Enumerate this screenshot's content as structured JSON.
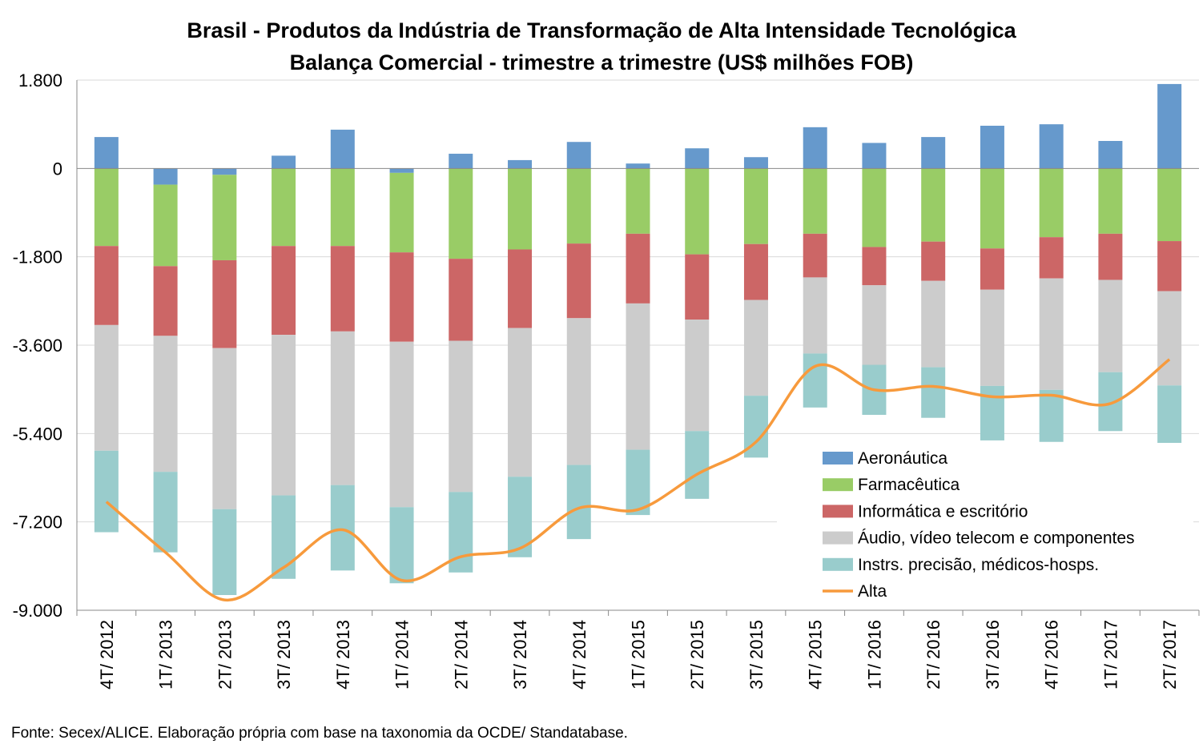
{
  "chart_data": {
    "type": "bar",
    "stacked": true,
    "title": "Brasil - Produtos da Indústria de Transformação de Alta Intensidade Tecnológica",
    "subtitle": "Balança Comercial - trimestre a trimestre (US$ milhões FOB)",
    "source": "Fonte: Secex/ALICE. Elaboração própria com base na taxonomia da OCDE/ Standatabase.",
    "categories": [
      "4T/ 2012",
      "1T/ 2013",
      "2T/ 2013",
      "3T/ 2013",
      "4T/ 2013",
      "1T/ 2014",
      "2T/ 2014",
      "3T/ 2014",
      "4T/ 2014",
      "1T/ 2015",
      "2T/ 2015",
      "3T/ 2015",
      "4T/ 2015",
      "1T/ 2016",
      "2T/ 2016",
      "3T/ 2016",
      "4T/ 2016",
      "1T/ 2017",
      "2T/ 2017"
    ],
    "ylim": [
      -9000,
      1800
    ],
    "yticks": [
      1800,
      0,
      -1800,
      -3600,
      -5400,
      -7200,
      -9000
    ],
    "ytick_labels": [
      "1.800",
      "0",
      "-1.800",
      "-3.600",
      "-5.400",
      "-7.200",
      "-9.000"
    ],
    "grid": true,
    "legend_position": "lower-right inside plot",
    "series": [
      {
        "name": "Aeronáutica",
        "type": "bar",
        "color": "#6699cc",
        "values": [
          640,
          -330,
          -130,
          260,
          790,
          -90,
          300,
          170,
          540,
          100,
          410,
          230,
          840,
          520,
          640,
          870,
          900,
          560,
          1720
        ]
      },
      {
        "name": "Farmacêutica",
        "type": "bar",
        "color": "#99cc66",
        "values": [
          -1580,
          -1660,
          -1740,
          -1580,
          -1580,
          -1620,
          -1840,
          -1650,
          -1530,
          -1330,
          -1750,
          -1540,
          -1330,
          -1600,
          -1490,
          -1630,
          -1400,
          -1330,
          -1480
        ]
      },
      {
        "name": "Informática e escritório",
        "type": "bar",
        "color": "#cc6666",
        "values": [
          -1610,
          -1420,
          -1790,
          -1810,
          -1740,
          -1820,
          -1670,
          -1600,
          -1520,
          -1420,
          -1330,
          -1140,
          -890,
          -780,
          -800,
          -840,
          -840,
          -940,
          -1020
        ]
      },
      {
        "name": "Áudio, vídeo telecom e componentes",
        "type": "bar",
        "color": "#cccccc",
        "values": [
          -2560,
          -2770,
          -3280,
          -3270,
          -3130,
          -3370,
          -3080,
          -3030,
          -2990,
          -2980,
          -2270,
          -1950,
          -1550,
          -1620,
          -1760,
          -1960,
          -2270,
          -1880,
          -1920
        ]
      },
      {
        "name": "Instrs. precisão, médicos-hosps.",
        "type": "bar",
        "color": "#99cccc",
        "values": [
          -1660,
          -1640,
          -1750,
          -1700,
          -1740,
          -1550,
          -1640,
          -1640,
          -1510,
          -1330,
          -1380,
          -1260,
          -1100,
          -1020,
          -1030,
          -1110,
          -1060,
          -1200,
          -1190
        ]
      },
      {
        "name": "Alta",
        "type": "line",
        "color": "#f79a3c",
        "values": [
          -6790,
          -7820,
          -8790,
          -8130,
          -7360,
          -8390,
          -7910,
          -7740,
          -6920,
          -6950,
          -6230,
          -5570,
          -4030,
          -4510,
          -4440,
          -4650,
          -4620,
          -4790,
          -3890
        ]
      }
    ]
  }
}
